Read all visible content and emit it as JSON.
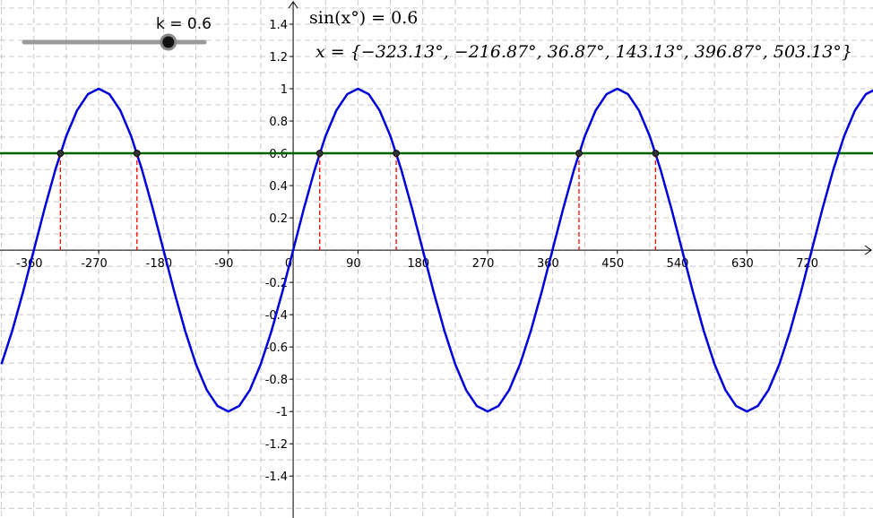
{
  "chart_data": {
    "type": "line",
    "slider": {
      "label": "k = 0.6",
      "value": 0.6,
      "range": [
        -1,
        1
      ]
    },
    "equation": "sin(x°) = 0.6",
    "solutions": "x = {−323.13°, −216.87°, 36.87°, 143.13°, 396.87°, 503.13°}",
    "x": [
      -405,
      -390,
      -375,
      -360,
      -345,
      -330,
      -315,
      -300,
      -285,
      -270,
      -255,
      -240,
      -225,
      -210,
      -195,
      -180,
      -165,
      -150,
      -135,
      -120,
      -105,
      -90,
      -75,
      -60,
      -45,
      -30,
      -15,
      0,
      15,
      30,
      45,
      60,
      75,
      90,
      105,
      120,
      135,
      150,
      165,
      180,
      195,
      210,
      225,
      240,
      255,
      270,
      285,
      300,
      315,
      330,
      345,
      360,
      375,
      390,
      405,
      420,
      435,
      450,
      465,
      480,
      495,
      510,
      525,
      540,
      555,
      570,
      585,
      600,
      615,
      630,
      645,
      660,
      675,
      690,
      705,
      720,
      735,
      750,
      765,
      780,
      795,
      810
    ],
    "series": [
      {
        "color": "#0000dd",
        "values": [
          -0.707,
          -0.5,
          -0.259,
          0,
          0.259,
          0.5,
          0.707,
          0.866,
          0.966,
          1,
          0.966,
          0.866,
          0.707,
          0.5,
          0.259,
          0,
          -0.259,
          -0.5,
          -0.707,
          -0.866,
          -0.966,
          -1,
          -0.966,
          -0.866,
          -0.707,
          -0.5,
          -0.259,
          0,
          0.259,
          0.5,
          0.707,
          0.866,
          0.966,
          1,
          0.966,
          0.866,
          0.707,
          0.5,
          0.259,
          0,
          -0.259,
          -0.5,
          -0.707,
          -0.866,
          -0.966,
          -1,
          -0.966,
          -0.866,
          -0.707,
          -0.5,
          -0.259,
          0,
          0.259,
          0.5,
          0.707,
          0.866,
          0.966,
          1,
          0.966,
          0.866,
          0.707,
          0.5,
          0.259,
          0,
          -0.259,
          -0.5,
          -0.707,
          -0.866,
          -0.966,
          -1,
          -0.966,
          -0.866,
          -0.707,
          -0.5,
          -0.259,
          0,
          0.259,
          0.5,
          0.707,
          0.866,
          0.966,
          1
        ]
      }
    ],
    "hline": {
      "value": 0.6,
      "color": "#006400"
    },
    "points": {
      "x": [
        -323.13,
        -216.87,
        36.87,
        143.13,
        396.87,
        503.13
      ],
      "y": [
        0.6,
        0.6,
        0.6,
        0.6,
        0.6,
        0.6
      ],
      "color": "#333333",
      "guide_color": "#ff0000"
    },
    "xlim": [
      -407,
      805
    ],
    "ylim": [
      -1.66,
      1.55
    ],
    "xticks": [
      -360,
      -270,
      -180,
      -90,
      0,
      90,
      180,
      270,
      360,
      450,
      540,
      630,
      720
    ],
    "yticks": [
      -1.4,
      -1.2,
      -1,
      -0.8,
      -0.6,
      -0.4,
      -0.2,
      0.2,
      0.4,
      0.6,
      0.8,
      1,
      1.2,
      1.4
    ],
    "xgrid": [
      -405,
      -360,
      -315,
      -270,
      -225,
      -180,
      -135,
      -90,
      -45,
      0,
      45,
      90,
      135,
      180,
      225,
      270,
      315,
      360,
      405,
      450,
      495,
      540,
      585,
      630,
      675,
      720,
      765,
      810
    ],
    "ygrid": [
      -1.6,
      -1.5,
      -1.4,
      -1.3,
      -1.2,
      -1.1,
      -1,
      -0.9,
      -0.8,
      -0.7,
      -0.6,
      -0.5,
      -0.4,
      -0.3,
      -0.2,
      -0.1,
      0,
      0.1,
      0.2,
      0.3,
      0.4,
      0.5,
      0.6,
      0.7,
      0.8,
      0.9,
      1,
      1.1,
      1.2,
      1.3,
      1.4,
      1.5
    ],
    "grid": true
  }
}
